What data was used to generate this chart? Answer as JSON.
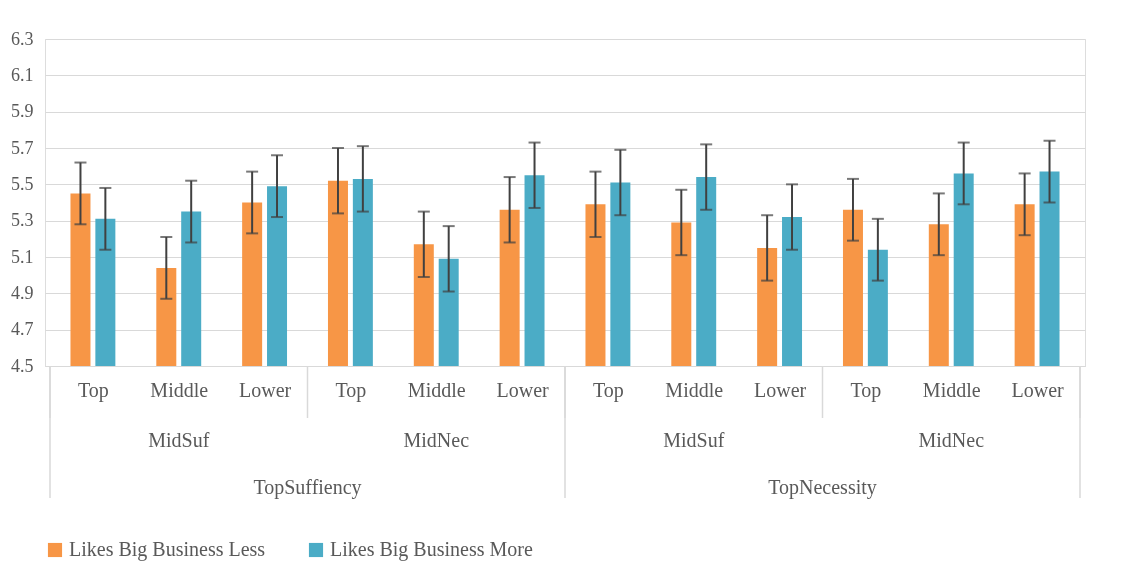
{
  "chart_data": {
    "type": "bar",
    "categories": [
      "Top",
      "Middle",
      "Lower",
      "Top",
      "Middle",
      "Lower",
      "Top",
      "Middle",
      "Lower",
      "Top",
      "Middle",
      "Lower"
    ],
    "series": [
      {
        "name": "Likes Big Business Less",
        "color": "#f79646",
        "values": [
          5.45,
          5.04,
          5.4,
          5.52,
          5.17,
          5.36,
          5.39,
          5.29,
          5.15,
          5.36,
          5.28,
          5.39
        ],
        "errors": [
          [
            5.28,
            5.62
          ],
          [
            4.87,
            5.21
          ],
          [
            5.23,
            5.57
          ],
          [
            5.34,
            5.7
          ],
          [
            4.99,
            5.35
          ],
          [
            5.18,
            5.54
          ],
          [
            5.21,
            5.57
          ],
          [
            5.11,
            5.47
          ],
          [
            4.97,
            5.33
          ],
          [
            5.19,
            5.53
          ],
          [
            5.11,
            5.45
          ],
          [
            5.22,
            5.56
          ]
        ]
      },
      {
        "name": "Likes Big Business More",
        "color": "#4bacc6",
        "values": [
          5.31,
          5.35,
          5.49,
          5.53,
          5.09,
          5.55,
          5.51,
          5.54,
          5.32,
          5.14,
          5.56,
          5.57
        ],
        "errors": [
          [
            5.14,
            5.48
          ],
          [
            5.18,
            5.52
          ],
          [
            5.32,
            5.66
          ],
          [
            5.35,
            5.71
          ],
          [
            4.91,
            5.27
          ],
          [
            5.37,
            5.73
          ],
          [
            5.33,
            5.69
          ],
          [
            5.36,
            5.72
          ],
          [
            5.14,
            5.5
          ],
          [
            4.97,
            5.31
          ],
          [
            5.39,
            5.73
          ],
          [
            5.4,
            5.74
          ]
        ]
      }
    ],
    "annotations": [
      "MidSuf",
      "MidNec",
      "MidSuf",
      "MidNec",
      "TopSuffiency",
      "TopNecessity"
    ],
    "ylim": [
      4.5,
      6.3
    ],
    "yticks": [
      4.5,
      4.7,
      4.9,
      5.1,
      5.3,
      5.5,
      5.7,
      5.9,
      6.1,
      6.3
    ],
    "grid": "y",
    "legend": "bottom"
  }
}
